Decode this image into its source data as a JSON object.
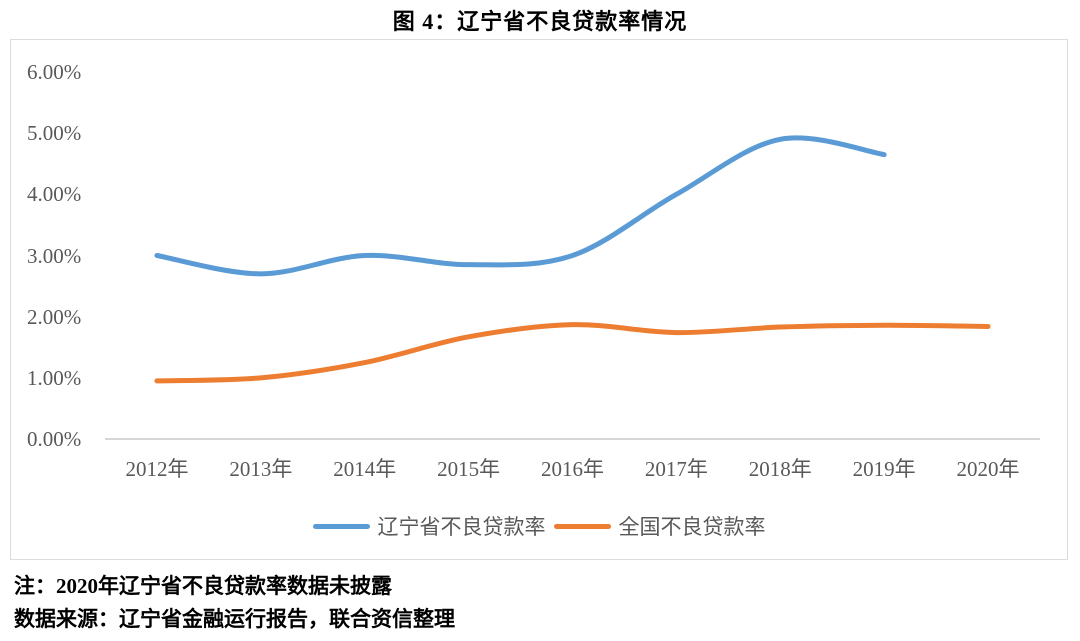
{
  "title": "图 4：辽宁省不良贷款率情况",
  "notes": {
    "note": "注：2020年辽宁省不良贷款率数据未披露",
    "source": "数据来源：辽宁省金融运行报告，联合资信整理"
  },
  "chart_data": {
    "type": "line",
    "title": "图 4：辽宁省不良贷款率情况",
    "categories": [
      "2012年",
      "2013年",
      "2014年",
      "2015年",
      "2016年",
      "2017年",
      "2018年",
      "2019年",
      "2020年"
    ],
    "series": [
      {
        "name": "辽宁省不良贷款率",
        "color": "#5B9BD5",
        "values": [
          3.0,
          2.7,
          3.0,
          2.85,
          3.0,
          4.0,
          4.9,
          4.65,
          null
        ]
      },
      {
        "name": "全国不良贷款率",
        "color": "#ED7D31",
        "values": [
          0.95,
          1.0,
          1.25,
          1.67,
          1.87,
          1.74,
          1.83,
          1.86,
          1.84
        ]
      }
    ],
    "y_ticks": [
      "6.00%",
      "5.00%",
      "4.00%",
      "3.00%",
      "2.00%",
      "1.00%",
      "0.00%"
    ],
    "ylim": [
      0,
      6
    ],
    "xlabel": "",
    "ylabel": "",
    "grid": false,
    "smooth": true,
    "legend_position": "bottom",
    "style": {
      "axis_color": "#C9C9C9",
      "border_color": "#DCDCDC",
      "tick_text_color": "#595959",
      "line_width": 5
    }
  }
}
